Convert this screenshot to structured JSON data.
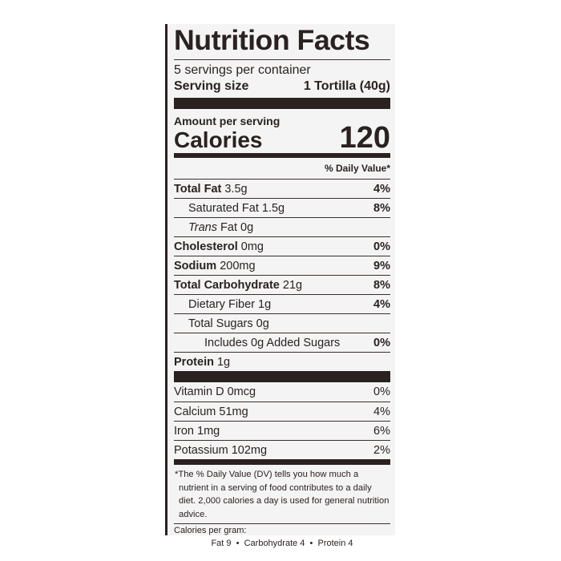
{
  "title": "Nutrition Facts",
  "servings_per_container": "5 servings per container",
  "serving_size_label": "Serving size",
  "serving_size_value": "1 Tortilla (40g)",
  "amount_per_serving": "Amount per serving",
  "calories_label": "Calories",
  "calories_value": "120",
  "daily_value_header": "% Daily Value*",
  "nutrients": [
    {
      "bold": "Total Fat",
      "amount": " 3.5g",
      "dv": "4%"
    },
    {
      "name": "Saturated Fat 1.5g",
      "dv": "8%"
    },
    {
      "italic": "Trans",
      "amount": " Fat 0g",
      "dv": ""
    },
    {
      "bold": "Cholesterol",
      "amount": " 0mg",
      "dv": "0%"
    },
    {
      "bold": "Sodium",
      "amount": " 200mg",
      "dv": "9%"
    },
    {
      "bold": "Total Carbohydrate",
      "amount": " 21g",
      "dv": "8%"
    },
    {
      "name": "Dietary Fiber 1g",
      "dv": "4%"
    },
    {
      "name": "Total Sugars 0g",
      "dv": ""
    },
    {
      "name": "Includes 0g Added Sugars",
      "dv": "0%"
    },
    {
      "bold": "Protein",
      "amount": " 1g",
      "dv": ""
    }
  ],
  "vitamins": [
    {
      "name": "Vitamin D 0mcg",
      "dv": "0%"
    },
    {
      "name": "Calcium 51mg",
      "dv": "4%"
    },
    {
      "name": "Iron 1mg",
      "dv": "6%"
    },
    {
      "name": "Potassium 102mg",
      "dv": "2%"
    }
  ],
  "footnote": "*The % Daily Value (DV) tells you how much a nutrient in a serving of food contributes to a daily diet. 2,000 calories a day is used for general nutrition advice.",
  "calories_per_gram_label": "Calories per gram:",
  "calories_per_gram_values": "Fat 9  •  Carbohydrate 4  •  Protein 4"
}
